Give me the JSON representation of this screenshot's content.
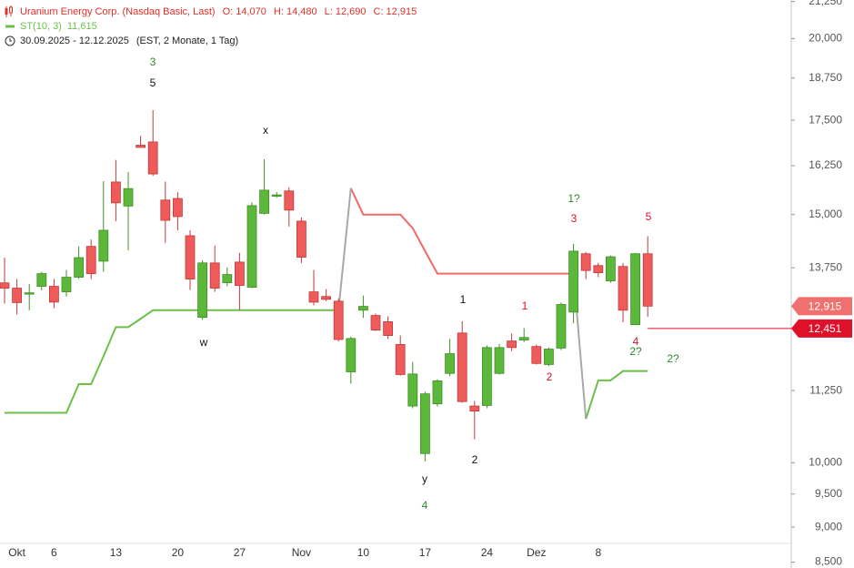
{
  "chart_data": {
    "type": "candlestick",
    "title": "Uranium Energy Corp. (Nasdaq Basic, Last)",
    "title_color": "#e0302a",
    "ohlc_labels": [
      "O: 14,070",
      "H: 14,480",
      "L: 12,690",
      "C: 12,915"
    ],
    "period": "30.09.2025 - 12.12.2025",
    "period_note": "(EST, 2 Monate, 1 Tag)",
    "log_scale": true,
    "ylim": [
      8450,
      21300
    ],
    "yticks": [
      {
        "value": 21250,
        "label": "21,250"
      },
      {
        "value": 20000,
        "label": "20,000"
      },
      {
        "value": 18750,
        "label": "18,750"
      },
      {
        "value": 17500,
        "label": "17,500"
      },
      {
        "value": 16250,
        "label": "16,250"
      },
      {
        "value": 15000,
        "label": "15,000"
      },
      {
        "value": 13750,
        "label": "13,750"
      },
      {
        "value": 11250,
        "label": "11,250"
      },
      {
        "value": 10000,
        "label": "10,000"
      },
      {
        "value": 9500,
        "label": "9,500"
      },
      {
        "value": 9000,
        "label": "9,000"
      },
      {
        "value": 8500,
        "label": "8,500"
      }
    ],
    "categories": [
      null,
      "Okt",
      null,
      null,
      "6",
      null,
      null,
      null,
      null,
      "13",
      null,
      null,
      null,
      null,
      "20",
      null,
      null,
      null,
      null,
      "27",
      null,
      null,
      null,
      null,
      "Nov",
      null,
      null,
      null,
      null,
      "10",
      null,
      null,
      null,
      null,
      "17",
      null,
      null,
      null,
      null,
      "24",
      null,
      null,
      null,
      "Dez",
      null,
      null,
      null,
      null,
      "8",
      null,
      null,
      null,
      null
    ],
    "open": [
      13416,
      13300,
      13180,
      13340,
      13340,
      13220,
      13540,
      14240,
      13900,
      15820,
      15210,
      16800,
      16890,
      15360,
      15400,
      14490,
      12680,
      13860,
      13420,
      13880,
      13320,
      15030,
      15470,
      15590,
      14840,
      13220,
      13120,
      13020,
      11600,
      12830,
      12720,
      12590,
      12130,
      10970,
      10150,
      11010,
      11570,
      12360,
      10970,
      10980,
      11570,
      12200,
      12220,
      12090,
      11740,
      12060,
      12790,
      14070,
      13800,
      13460,
      13780,
      12530,
      14070
    ],
    "high": [
      13980,
      13500,
      13390,
      13660,
      13500,
      13700,
      14240,
      14400,
      15840,
      16400,
      16080,
      17060,
      17790,
      15830,
      15560,
      14620,
      13920,
      14260,
      13760,
      14090,
      15300,
      16420,
      15560,
      15680,
      14930,
      13700,
      13280,
      13080,
      12290,
      13140,
      12760,
      12700,
      12310,
      11790,
      11230,
      11460,
      12240,
      12600,
      11060,
      12110,
      12140,
      12350,
      12460,
      12130,
      12070,
      12990,
      14300,
      14110,
      13860,
      14030,
      13860,
      14090,
      14480
    ],
    "low": [
      12970,
      12740,
      12830,
      13250,
      12870,
      13120,
      13500,
      13500,
      13660,
      14840,
      14150,
      16740,
      15980,
      14320,
      14620,
      13260,
      12630,
      13220,
      13340,
      12830,
      13300,
      15000,
      15420,
      14710,
      13860,
      12930,
      13020,
      12190,
      11380,
      12670,
      12400,
      12240,
      11530,
      10930,
      10020,
      10960,
      11520,
      11030,
      10390,
      10930,
      11550,
      12000,
      12180,
      11740,
      11710,
      12020,
      12560,
      13500,
      13540,
      13420,
      12580,
      12520,
      12690
    ],
    "close": [
      13300,
      12990,
      13200,
      13620,
      13000,
      13540,
      13980,
      13620,
      14620,
      15290,
      15650,
      16740,
      16030,
      14860,
      14950,
      13500,
      13860,
      13300,
      13600,
      13360,
      15220,
      15610,
      15490,
      15110,
      13990,
      13000,
      13060,
      12230,
      12250,
      12910,
      12420,
      12310,
      11550,
      11560,
      11190,
      11430,
      11950,
      11050,
      10880,
      12070,
      12070,
      12070,
      12270,
      11760,
      12040,
      12950,
      14130,
      13690,
      13640,
      14000,
      12830,
      14070,
      12915
    ],
    "up_color": "#5cb83a",
    "up_edge": "#3f8f28",
    "down_color": "#ef5b5b",
    "down_edge": "#c23a3a",
    "indicator": {
      "name": "ST(10, 3)",
      "value": 11615,
      "value_label": "11,615",
      "color": "#6cc04a",
      "down_color": "#f06a6a",
      "switch_color": "#a8a8a8",
      "up": [
        10850,
        10850,
        10850,
        10850,
        10850,
        10850,
        11370,
        11370,
        11900,
        12480,
        12480,
        12650,
        12830,
        12830,
        12830,
        12830,
        12830,
        12830,
        12830,
        12830,
        12830,
        12830,
        12830,
        12830,
        12830,
        12830,
        12830,
        12830,
        null,
        null,
        null,
        null,
        null,
        null,
        null,
        null,
        null,
        null,
        null,
        null,
        null,
        null,
        null,
        null,
        null,
        null,
        null,
        10740,
        11440,
        11440,
        11615,
        11615,
        11615
      ],
      "down": [
        null,
        null,
        null,
        null,
        null,
        null,
        null,
        null,
        null,
        null,
        null,
        null,
        null,
        null,
        null,
        null,
        null,
        null,
        null,
        null,
        null,
        null,
        null,
        null,
        null,
        null,
        null,
        null,
        15660,
        15000,
        15000,
        15000,
        15000,
        14670,
        14130,
        13620,
        13620,
        13620,
        13620,
        13620,
        13620,
        13620,
        13620,
        13620,
        13620,
        13620,
        13620,
        null,
        null,
        null,
        null,
        null,
        null
      ]
    },
    "last_price": {
      "value": 12915,
      "label": "12,915",
      "color": "#f07070"
    },
    "price_line": {
      "value": 12451,
      "label": "12,451",
      "color": "#e0102a"
    },
    "annotations": [
      {
        "text": "3",
        "color": "#2e8b2e"
      },
      {
        "text": "5",
        "color": "#111111"
      },
      {
        "text": "x",
        "color": "#111111"
      },
      {
        "text": "w",
        "color": "#111111"
      },
      {
        "text": "y",
        "color": "#111111"
      },
      {
        "text": "4",
        "color": "#2e8b2e"
      },
      {
        "text": "1",
        "color": "#111111"
      },
      {
        "text": "2",
        "color": "#111111"
      },
      {
        "text": "1",
        "color": "#e0102a"
      },
      {
        "text": "2",
        "color": "#e0102a"
      },
      {
        "text": "1?",
        "color": "#2e8b2e"
      },
      {
        "text": "3",
        "color": "#e0102a"
      },
      {
        "text": "5",
        "color": "#e0102a"
      },
      {
        "text": "4",
        "color": "#e0102a"
      },
      {
        "text": "2?",
        "color": "#2e8b2e"
      },
      {
        "text": "2?",
        "color": "#2e8b2e"
      }
    ]
  }
}
